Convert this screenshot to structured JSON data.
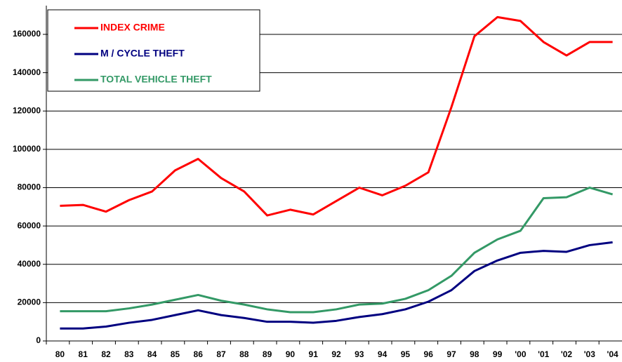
{
  "chart_data": {
    "type": "line",
    "categories": [
      "80",
      "81",
      "82",
      "83",
      "84",
      "85",
      "86",
      "87",
      "88",
      "89",
      "90",
      "91",
      "92",
      "93",
      "94",
      "95",
      "96",
      "97",
      "98",
      "99",
      "'00",
      "'01",
      "'02",
      "'03",
      "'04"
    ],
    "series": [
      {
        "name": "INDEX CRIME",
        "color": "#ff0000",
        "values": [
          70500,
          71000,
          67500,
          73500,
          78000,
          89000,
          95000,
          85000,
          78000,
          65500,
          68500,
          66000,
          73000,
          80000,
          76000,
          81000,
          88000,
          122000,
          159000,
          169000,
          167000,
          156000,
          149000,
          156000,
          156000
        ]
      },
      {
        "name": "M / CYCLE THEFT",
        "color": "#000080",
        "values": [
          6500,
          6500,
          7500,
          9500,
          11000,
          13500,
          16000,
          13500,
          12000,
          10000,
          10000,
          9500,
          10500,
          12500,
          14000,
          16500,
          20500,
          26500,
          36500,
          42000,
          46000,
          47000,
          46500,
          50000,
          51500
        ]
      },
      {
        "name": "TOTAL VEHICLE THEFT",
        "color": "#339966",
        "values": [
          15500,
          15500,
          15500,
          17000,
          19000,
          21500,
          24000,
          21000,
          19000,
          16500,
          15000,
          15000,
          16500,
          19000,
          19500,
          22000,
          26500,
          34000,
          46000,
          53000,
          57500,
          74500,
          75000,
          80000,
          76500
        ]
      }
    ],
    "ylim": [
      0,
      175000
    ],
    "yticks": [
      0,
      20000,
      40000,
      60000,
      80000,
      100000,
      120000,
      140000,
      160000
    ],
    "grid": true,
    "legend": "top-left"
  }
}
